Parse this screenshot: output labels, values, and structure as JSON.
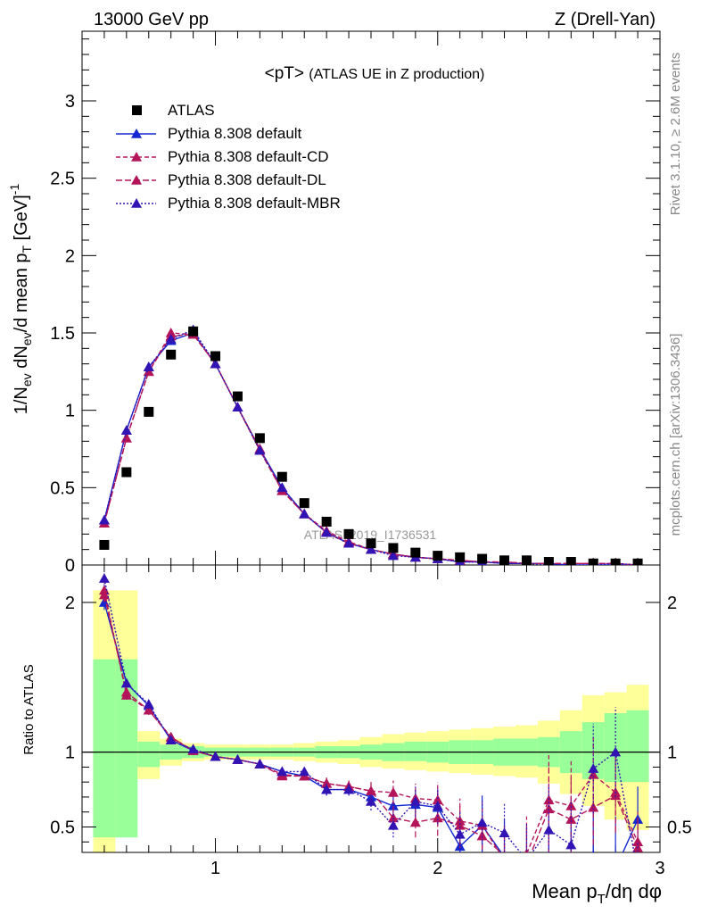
{
  "header": {
    "left": "13000 GeV pp",
    "right": "Z (Drell-Yan)"
  },
  "side_labels": {
    "rivet": "Rivet 3.1.10, ≥ 2.6M events",
    "mcplots": "mcplots.cern.ch [arXiv:1306.3436]"
  },
  "chart_data": {
    "type": "scatter",
    "title": "<pT> (ATLAS UE in Z production)",
    "title_main": "<pT>",
    "title_sub": "(ATLAS UE in Z production)",
    "watermark": "ATLAS_2019_I1736531",
    "xlabel": "Mean p_T/dη dφ",
    "ylabel": "1/N_ev dN_ev/d mean p_T [GeV]^-1",
    "ratio_ylabel": "Ratio to ATLAS",
    "xlim": [
      0.4,
      3.0
    ],
    "ylim": [
      0,
      3.45
    ],
    "ratio_ylim": [
      0.33,
      2.25
    ],
    "legend_position": "top-left",
    "x_ticks": [
      "1",
      "2",
      "3"
    ],
    "y_ticks": [
      "0",
      "0.5",
      "1",
      "1.5",
      "2",
      "2.5",
      "3"
    ],
    "ratio_ticks": [
      "0.5",
      "1",
      "2"
    ],
    "colors": {
      "data": "#000000",
      "default": "#1428d2",
      "cd": "#b4145a",
      "dl": "#b4145a",
      "mbr": "#3214b4",
      "band_inner": "#99ff99",
      "band_outer": "#ffff99"
    },
    "x": [
      0.5,
      0.6,
      0.7,
      0.8,
      0.9,
      1.0,
      1.1,
      1.2,
      1.3,
      1.4,
      1.5,
      1.6,
      1.7,
      1.8,
      1.9,
      2.0,
      2.1,
      2.2,
      2.3,
      2.4,
      2.5,
      2.6,
      2.7,
      2.8,
      2.9
    ],
    "data": {
      "name": "ATLAS",
      "values": [
        0.13,
        0.6,
        0.99,
        1.36,
        1.51,
        1.35,
        1.09,
        0.82,
        0.57,
        0.4,
        0.28,
        0.2,
        0.14,
        0.11,
        0.08,
        0.06,
        0.05,
        0.04,
        0.03,
        0.03,
        0.02,
        0.02,
        0.01,
        0.01,
        0.01
      ],
      "band_inner": [
        [
          0.43,
          1.62
        ],
        [
          0.43,
          1.62
        ],
        [
          0.9,
          1.07
        ],
        [
          0.95,
          1.05
        ],
        [
          0.96,
          1.04
        ],
        [
          0.97,
          1.03
        ],
        [
          0.97,
          1.03
        ],
        [
          0.97,
          1.03
        ],
        [
          0.97,
          1.03
        ],
        [
          0.97,
          1.03
        ],
        [
          0.96,
          1.04
        ],
        [
          0.96,
          1.04
        ],
        [
          0.95,
          1.05
        ],
        [
          0.94,
          1.06
        ],
        [
          0.94,
          1.07
        ],
        [
          0.93,
          1.07
        ],
        [
          0.92,
          1.08
        ],
        [
          0.92,
          1.08
        ],
        [
          0.91,
          1.09
        ],
        [
          0.91,
          1.09
        ],
        [
          0.9,
          1.1
        ],
        [
          0.86,
          1.14
        ],
        [
          0.82,
          1.2
        ],
        [
          0.8,
          1.26
        ],
        [
          0.8,
          1.28
        ]
      ],
      "band_outer": [
        [
          0.33,
          2.08
        ],
        [
          0.82,
          2.08
        ],
        [
          0.82,
          1.14
        ],
        [
          0.91,
          1.09
        ],
        [
          0.94,
          1.06
        ],
        [
          0.95,
          1.05
        ],
        [
          0.95,
          1.05
        ],
        [
          0.95,
          1.05
        ],
        [
          0.95,
          1.05
        ],
        [
          0.94,
          1.06
        ],
        [
          0.93,
          1.07
        ],
        [
          0.92,
          1.08
        ],
        [
          0.9,
          1.1
        ],
        [
          0.89,
          1.12
        ],
        [
          0.88,
          1.13
        ],
        [
          0.87,
          1.14
        ],
        [
          0.86,
          1.15
        ],
        [
          0.85,
          1.16
        ],
        [
          0.84,
          1.17
        ],
        [
          0.83,
          1.18
        ],
        [
          0.79,
          1.21
        ],
        [
          0.72,
          1.28
        ],
        [
          0.64,
          1.38
        ],
        [
          0.55,
          1.4
        ],
        [
          0.48,
          1.45
        ]
      ]
    },
    "series": [
      {
        "name": "Pythia 8.308 default",
        "key": "default",
        "values": [
          0.29,
          0.87,
          1.28,
          1.45,
          1.5,
          1.3,
          1.02,
          0.75,
          0.5,
          0.33,
          0.21,
          0.14,
          0.1,
          0.07,
          0.05,
          0.04,
          0.02,
          0.02,
          0.01,
          0.01,
          0.01,
          0.0,
          0.0,
          0.0,
          0.0
        ],
        "ratio": [
          2.0,
          1.46,
          1.31,
          1.08,
          1.01,
          0.97,
          0.95,
          0.92,
          0.87,
          0.84,
          0.75,
          0.75,
          0.7,
          0.64,
          0.65,
          0.63,
          0.37,
          0.51,
          0.3,
          0.2,
          0.3,
          0.2,
          0.31,
          0.22,
          0.55
        ],
        "ratio_err": [
          0.05,
          0.03,
          0.03,
          0.02,
          0.02,
          0.02,
          0.02,
          0.02,
          0.02,
          0.03,
          0.04,
          0.04,
          0.06,
          0.08,
          0.1,
          0.12,
          0.15,
          0.2,
          0.25,
          0.3,
          0.3,
          0.3,
          0.35,
          0.35,
          0.22
        ]
      },
      {
        "name": "Pythia 8.308 default-CD",
        "key": "cd",
        "values": [
          0.27,
          0.82,
          1.25,
          1.5,
          1.49,
          1.3,
          1.02,
          0.75,
          0.48,
          0.33,
          0.22,
          0.15,
          0.1,
          0.07,
          0.05,
          0.04,
          0.03,
          0.02,
          0.02,
          0.01,
          0.01,
          0.01,
          0.01,
          0.01,
          0.0
        ],
        "ratio": [
          2.08,
          1.38,
          1.28,
          1.1,
          1.01,
          0.97,
          0.95,
          0.92,
          0.85,
          0.84,
          0.79,
          0.77,
          0.74,
          0.73,
          0.69,
          0.68,
          0.54,
          0.51,
          0.28,
          0.32,
          0.68,
          0.64,
          0.85,
          0.73,
          0.4
        ],
        "ratio_err": [
          0.05,
          0.03,
          0.03,
          0.02,
          0.02,
          0.02,
          0.02,
          0.02,
          0.02,
          0.03,
          0.04,
          0.04,
          0.06,
          0.08,
          0.1,
          0.12,
          0.15,
          0.15,
          0.2,
          0.25,
          0.3,
          0.3,
          0.25,
          0.25,
          0.2
        ]
      },
      {
        "name": "Pythia 8.308 default-DL",
        "key": "dl",
        "values": [
          0.27,
          0.82,
          1.25,
          1.48,
          1.49,
          1.3,
          1.02,
          0.74,
          0.48,
          0.33,
          0.21,
          0.14,
          0.1,
          0.07,
          0.05,
          0.04,
          0.03,
          0.02,
          0.02,
          0.01,
          0.01,
          0.01,
          0.01,
          0.01,
          0.0
        ],
        "ratio": [
          2.05,
          1.4,
          1.28,
          1.1,
          1.01,
          0.97,
          0.95,
          0.92,
          0.84,
          0.84,
          0.79,
          0.77,
          0.74,
          0.56,
          0.53,
          0.56,
          0.51,
          0.44,
          0.31,
          0.25,
          0.62,
          0.55,
          0.63,
          0.71,
          0.36
        ],
        "ratio_err": [
          0.05,
          0.03,
          0.03,
          0.02,
          0.02,
          0.02,
          0.02,
          0.02,
          0.02,
          0.03,
          0.04,
          0.04,
          0.06,
          0.08,
          0.1,
          0.12,
          0.15,
          0.15,
          0.2,
          0.25,
          0.3,
          0.3,
          0.25,
          0.25,
          0.2
        ]
      },
      {
        "name": "Pythia 8.308 default-MBR",
        "key": "mbr",
        "values": [
          0.29,
          0.87,
          1.28,
          1.46,
          1.52,
          1.3,
          1.02,
          0.74,
          0.5,
          0.33,
          0.21,
          0.14,
          0.1,
          0.06,
          0.05,
          0.04,
          0.02,
          0.02,
          0.01,
          0.01,
          0.0,
          0.0,
          0.0,
          0.01,
          0.0
        ],
        "ratio": [
          2.16,
          1.46,
          1.32,
          1.08,
          1.02,
          0.97,
          0.95,
          0.92,
          0.87,
          0.87,
          0.75,
          0.75,
          0.67,
          0.51,
          0.67,
          0.64,
          0.45,
          0.53,
          0.46,
          0.28,
          0.48,
          0.38,
          0.89,
          1.0,
          0.2
        ],
        "ratio_err": [
          0.05,
          0.03,
          0.03,
          0.02,
          0.02,
          0.02,
          0.02,
          0.02,
          0.02,
          0.03,
          0.04,
          0.04,
          0.06,
          0.08,
          0.1,
          0.12,
          0.15,
          0.15,
          0.2,
          0.25,
          0.3,
          0.3,
          0.3,
          0.3,
          0.2
        ]
      }
    ]
  }
}
